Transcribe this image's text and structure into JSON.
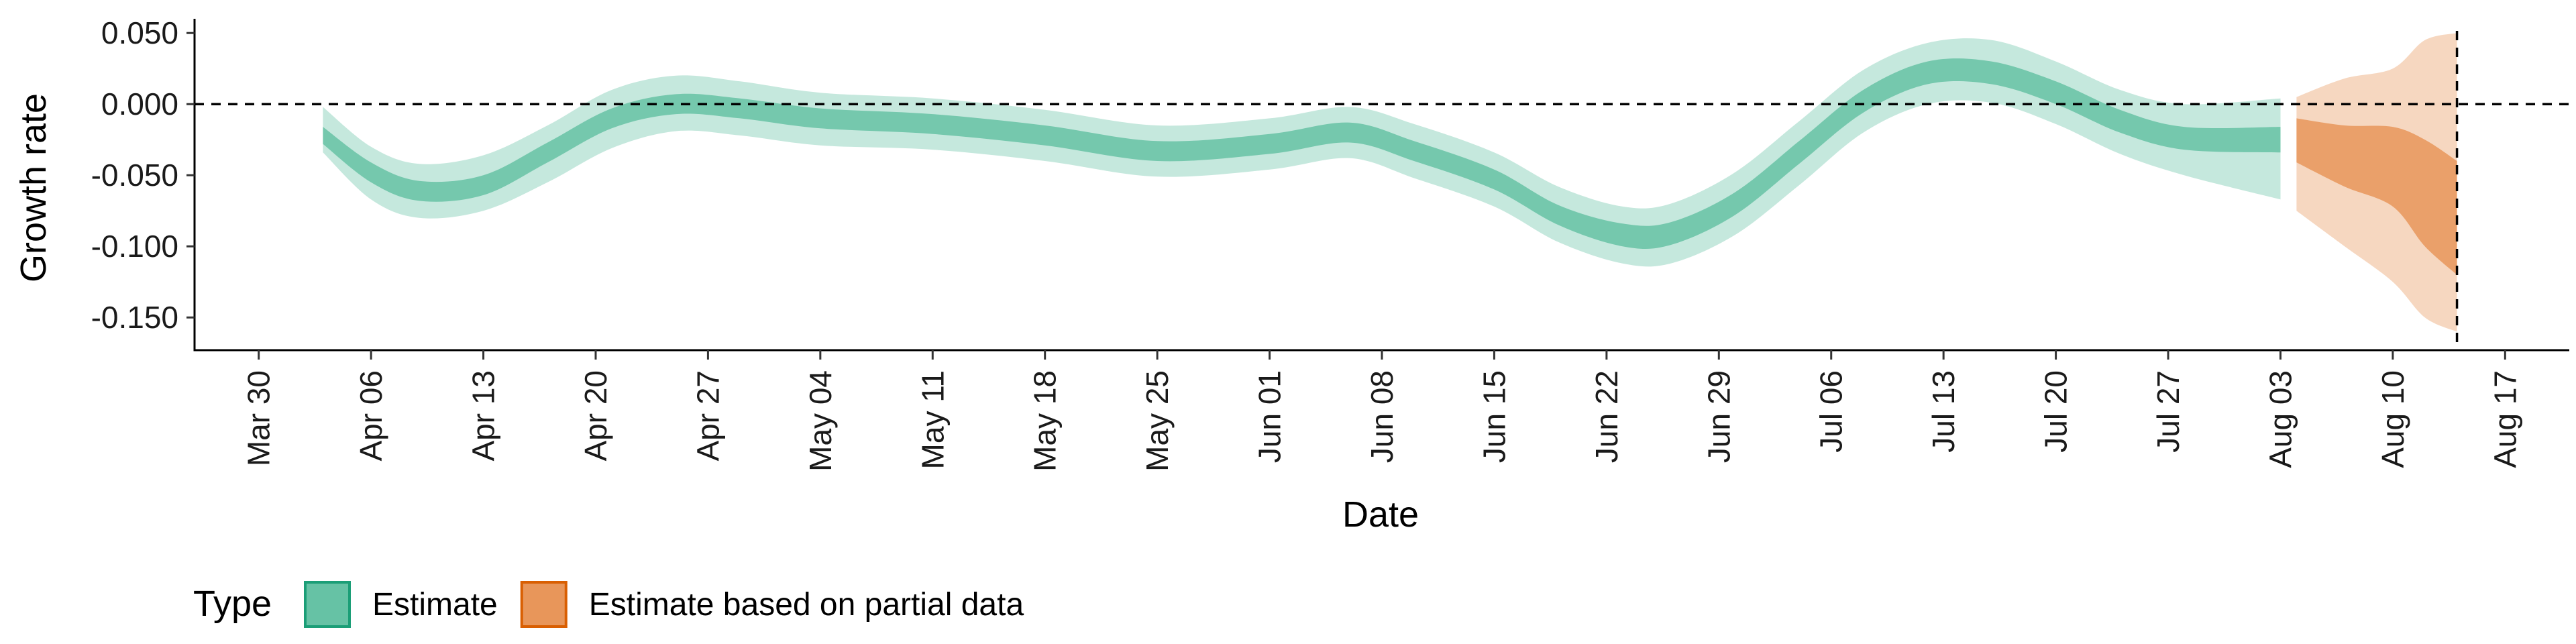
{
  "chart_data": {
    "type": "area",
    "xlabel": "Date",
    "ylabel": "Growth rate",
    "x_ticks": [
      "Mar 30",
      "Apr 06",
      "Apr 13",
      "Apr 20",
      "Apr 27",
      "May 04",
      "May 11",
      "May 18",
      "May 25",
      "Jun 01",
      "Jun 08",
      "Jun 15",
      "Jun 22",
      "Jun 29",
      "Jul 06",
      "Jul 13",
      "Jul 20",
      "Jul 27",
      "Aug 03",
      "Aug 10",
      "Aug 17"
    ],
    "x_tick_dates": [
      "2020-03-30",
      "2020-04-06",
      "2020-04-13",
      "2020-04-20",
      "2020-04-27",
      "2020-05-04",
      "2020-05-11",
      "2020-05-18",
      "2020-05-25",
      "2020-06-01",
      "2020-06-08",
      "2020-06-15",
      "2020-06-22",
      "2020-06-29",
      "2020-07-06",
      "2020-07-13",
      "2020-07-20",
      "2020-07-27",
      "2020-08-03",
      "2020-08-10",
      "2020-08-17"
    ],
    "xlim": [
      "2020-03-26",
      "2020-08-21"
    ],
    "y_ticks": [
      "0.050",
      "0.000",
      "-0.050",
      "-0.100",
      "-0.150"
    ],
    "ylim": [
      -0.173,
      0.06
    ],
    "reference_lines": [
      {
        "axis": "y",
        "value": 0.0,
        "style": "dashed"
      },
      {
        "axis": "x",
        "value": "2020-08-14",
        "style": "dashed"
      }
    ],
    "grid": false,
    "legend": {
      "title": "Type",
      "placement": "bottom-left",
      "entries": [
        {
          "label": "Estimate",
          "color": "#66c2a5",
          "border": "#1b9e77"
        },
        {
          "label": "Estimate based on partial data",
          "color": "#e8965a",
          "border": "#d95f02"
        }
      ]
    },
    "series": [
      {
        "name": "Estimate",
        "color": "#66c2a5",
        "band_opacity": [
          0.38,
          0.85
        ],
        "points": [
          {
            "x": "2020-04-03",
            "y": -0.022,
            "inner": [
              -0.028,
              -0.016
            ],
            "outer": [
              -0.034,
              -0.002
            ]
          },
          {
            "x": "2020-04-06",
            "y": -0.048,
            "inner": [
              -0.055,
              -0.041
            ],
            "outer": [
              -0.067,
              -0.03
            ]
          },
          {
            "x": "2020-04-09",
            "y": -0.061,
            "inner": [
              -0.068,
              -0.054
            ],
            "outer": [
              -0.08,
              -0.042
            ]
          },
          {
            "x": "2020-04-13",
            "y": -0.057,
            "inner": [
              -0.064,
              -0.05
            ],
            "outer": [
              -0.075,
              -0.036
            ]
          },
          {
            "x": "2020-04-17",
            "y": -0.034,
            "inner": [
              -0.041,
              -0.027
            ],
            "outer": [
              -0.055,
              -0.015
            ]
          },
          {
            "x": "2020-04-21",
            "y": -0.01,
            "inner": [
              -0.017,
              -0.003
            ],
            "outer": [
              -0.031,
              0.01
            ]
          },
          {
            "x": "2020-04-25",
            "y": 0.0,
            "inner": [
              -0.007,
              0.007
            ],
            "outer": [
              -0.019,
              0.02
            ]
          },
          {
            "x": "2020-04-29",
            "y": -0.003,
            "inner": [
              -0.01,
              0.004
            ],
            "outer": [
              -0.022,
              0.016
            ]
          },
          {
            "x": "2020-05-04",
            "y": -0.01,
            "inner": [
              -0.017,
              -0.003
            ],
            "outer": [
              -0.029,
              0.008
            ]
          },
          {
            "x": "2020-05-11",
            "y": -0.014,
            "inner": [
              -0.021,
              -0.007
            ],
            "outer": [
              -0.032,
              0.004
            ]
          },
          {
            "x": "2020-05-18",
            "y": -0.022,
            "inner": [
              -0.029,
              -0.015
            ],
            "outer": [
              -0.04,
              -0.004
            ]
          },
          {
            "x": "2020-05-25",
            "y": -0.033,
            "inner": [
              -0.04,
              -0.026
            ],
            "outer": [
              -0.051,
              -0.015
            ]
          },
          {
            "x": "2020-06-01",
            "y": -0.028,
            "inner": [
              -0.035,
              -0.021
            ],
            "outer": [
              -0.046,
              -0.01
            ]
          },
          {
            "x": "2020-06-06",
            "y": -0.02,
            "inner": [
              -0.027,
              -0.013
            ],
            "outer": [
              -0.038,
              -0.002
            ]
          },
          {
            "x": "2020-06-10",
            "y": -0.033,
            "inner": [
              -0.04,
              -0.026
            ],
            "outer": [
              -0.052,
              -0.014
            ]
          },
          {
            "x": "2020-06-15",
            "y": -0.053,
            "inner": [
              -0.06,
              -0.046
            ],
            "outer": [
              -0.072,
              -0.034
            ]
          },
          {
            "x": "2020-06-19",
            "y": -0.078,
            "inner": [
              -0.085,
              -0.071
            ],
            "outer": [
              -0.097,
              -0.058
            ]
          },
          {
            "x": "2020-06-23",
            "y": -0.092,
            "inner": [
              -0.1,
              -0.084
            ],
            "outer": [
              -0.112,
              -0.072
            ]
          },
          {
            "x": "2020-06-26",
            "y": -0.091,
            "inner": [
              -0.099,
              -0.083
            ],
            "outer": [
              -0.112,
              -0.07
            ]
          },
          {
            "x": "2020-06-30",
            "y": -0.07,
            "inner": [
              -0.078,
              -0.062
            ],
            "outer": [
              -0.092,
              -0.048
            ]
          },
          {
            "x": "2020-07-04",
            "y": -0.034,
            "inner": [
              -0.042,
              -0.026
            ],
            "outer": [
              -0.057,
              -0.012
            ]
          },
          {
            "x": "2020-07-08",
            "y": 0.002,
            "inner": [
              -0.006,
              0.01
            ],
            "outer": [
              -0.02,
              0.024
            ]
          },
          {
            "x": "2020-07-12",
            "y": 0.022,
            "inner": [
              0.014,
              0.03
            ],
            "outer": [
              0.0,
              0.043
            ]
          },
          {
            "x": "2020-07-16",
            "y": 0.022,
            "inner": [
              0.014,
              0.03
            ],
            "outer": [
              0.001,
              0.045
            ]
          },
          {
            "x": "2020-07-20",
            "y": 0.008,
            "inner": [
              0.0,
              0.016
            ],
            "outer": [
              -0.014,
              0.03
            ]
          },
          {
            "x": "2020-07-24",
            "y": -0.012,
            "inner": [
              -0.02,
              -0.004
            ],
            "outer": [
              -0.035,
              0.01
            ]
          },
          {
            "x": "2020-07-28",
            "y": -0.024,
            "inner": [
              -0.032,
              -0.016
            ],
            "outer": [
              -0.05,
              0.0
            ]
          },
          {
            "x": "2020-08-03",
            "y": -0.025,
            "inner": [
              -0.034,
              -0.016
            ],
            "outer": [
              -0.067,
              0.004
            ]
          }
        ]
      },
      {
        "name": "Estimate based on partial data",
        "color": "#e8965a",
        "band_opacity": [
          0.38,
          0.85
        ],
        "points": [
          {
            "x": "2020-08-04",
            "y": -0.025,
            "inner": [
              -0.041,
              -0.01
            ],
            "outer": [
              -0.075,
              0.005
            ]
          },
          {
            "x": "2020-08-07",
            "y": -0.037,
            "inner": [
              -0.058,
              -0.015
            ],
            "outer": [
              -0.1,
              0.018
            ]
          },
          {
            "x": "2020-08-10",
            "y": -0.048,
            "inner": [
              -0.072,
              -0.016
            ],
            "outer": [
              -0.125,
              0.025
            ]
          },
          {
            "x": "2020-08-12",
            "y": -0.065,
            "inner": [
              -0.1,
              -0.025
            ],
            "outer": [
              -0.15,
              0.045
            ]
          },
          {
            "x": "2020-08-14",
            "y": -0.085,
            "inner": [
              -0.12,
              -0.04
            ],
            "outer": [
              -0.16,
              0.05
            ]
          }
        ]
      }
    ]
  }
}
